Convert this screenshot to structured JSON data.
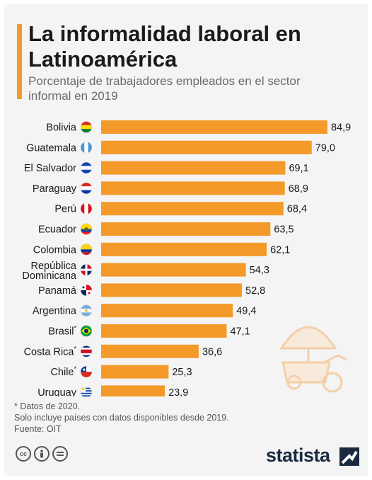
{
  "title": "La informalidad laboral en Latinoamérica",
  "subtitle": "Porcentaje de trabajadores empleados en el sector informal en 2019",
  "chart_data": {
    "type": "bar",
    "orientation": "horizontal",
    "categories": [
      "Bolivia",
      "Guatemala",
      "El Salvador",
      "Paraguay",
      "Perú",
      "Ecuador",
      "Colombia",
      "República Dominicana",
      "Panamá",
      "Argentina",
      "Brasil",
      "Costa Rica",
      "Chile",
      "Uruguay"
    ],
    "category_marks": [
      "",
      "",
      "",
      "",
      "",
      "",
      "",
      "",
      "",
      "",
      "*",
      "*",
      "*",
      ""
    ],
    "values": [
      84.9,
      79.0,
      69.1,
      68.9,
      68.4,
      63.5,
      62.1,
      54.3,
      52.8,
      49.4,
      47.1,
      36.6,
      25.3,
      23.9
    ],
    "value_labels": [
      "84,9",
      "79,0",
      "69,1",
      "68,9",
      "68,4",
      "63,5",
      "62,1",
      "54,3",
      "52,8",
      "49,4",
      "47,1",
      "36,6",
      "25,3",
      "23,9"
    ],
    "flags": [
      "flag-bolivia",
      "flag-guatemala",
      "flag-el-salvador",
      "flag-paraguay",
      "flag-peru",
      "flag-ecuador",
      "flag-colombia",
      "flag-republica-dominicana",
      "flag-panama",
      "flag-argentina",
      "flag-brasil",
      "flag-costa-rica",
      "flag-chile",
      "flag-uruguay"
    ],
    "xlim": [
      0,
      84.9
    ],
    "bar_color": "#f39a2b",
    "grid": false,
    "legend": "none"
  },
  "footnotes": {
    "note1": "* Datos de 2020.",
    "note2": "Solo incluye países con datos disponibles desde 2019.",
    "source": "Fuente: OIT"
  },
  "brand": "statista",
  "license_icons": [
    "cc-icon",
    "attribution-icon",
    "no-derivatives-icon"
  ],
  "colors": {
    "accent": "#f39a2b",
    "title": "#1a1a1a",
    "subtitle": "#6a6a6a",
    "brand": "#1b2a3f"
  }
}
